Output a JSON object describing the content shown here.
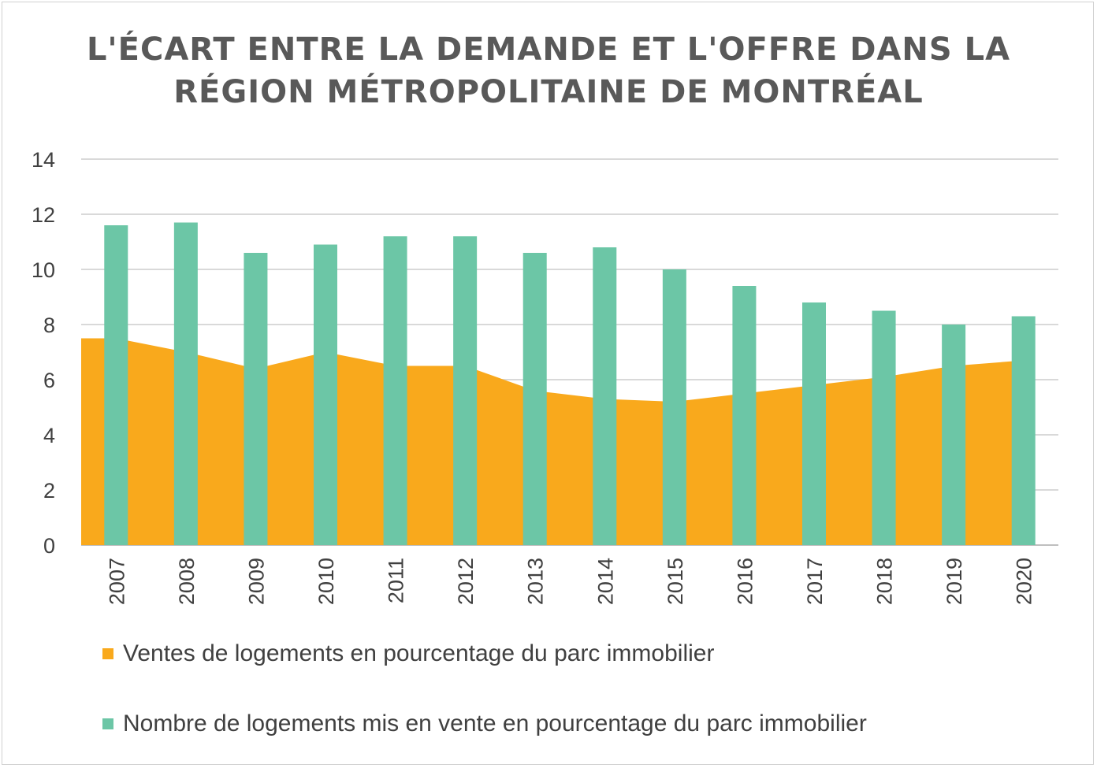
{
  "chart_data": {
    "type": "bar+area",
    "title": "L'ÉCART ENTRE LA DEMANDE ET L'OFFRE DANS LA\nRÉGION MÉTROPOLITAINE DE MONTRÉAL",
    "categories": [
      "2007",
      "2008",
      "2009",
      "2010",
      "2011",
      "2012",
      "2013",
      "2014",
      "2015",
      "2016",
      "2017",
      "2018",
      "2019",
      "2020"
    ],
    "ylim": [
      0,
      14
    ],
    "yticks": [
      0,
      2,
      4,
      6,
      8,
      10,
      12,
      14
    ],
    "grid": true,
    "legend_position": "bottom",
    "series": [
      {
        "name": "Ventes de logements en pourcentage du parc immobilier",
        "type": "area",
        "color": "#F9A91C",
        "values": [
          7.5,
          7.0,
          6.4,
          7.0,
          6.5,
          6.5,
          5.6,
          5.3,
          5.2,
          5.5,
          5.8,
          6.1,
          6.5,
          6.7
        ]
      },
      {
        "name": "Nombre de logements mis en vente en pourcentage du parc immobilier",
        "type": "bar",
        "color": "#6CC6A6",
        "values": [
          11.6,
          11.7,
          10.6,
          10.9,
          11.2,
          11.2,
          10.6,
          10.8,
          10.0,
          9.4,
          8.8,
          8.5,
          8.0,
          8.3
        ]
      }
    ]
  }
}
